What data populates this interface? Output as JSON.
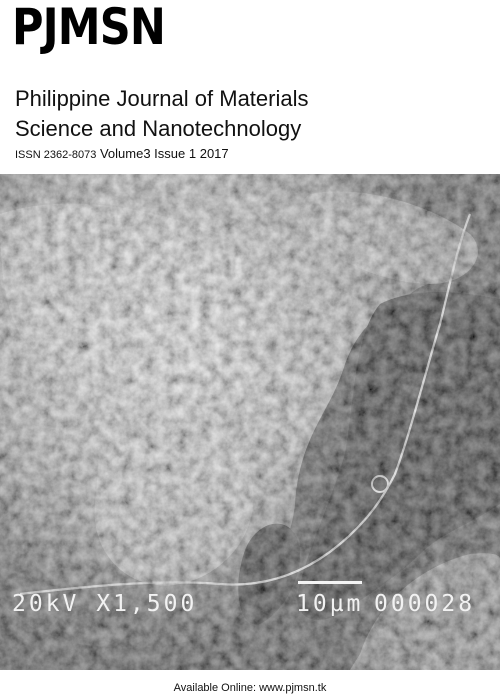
{
  "cover": {
    "logo": "PJMSN",
    "title_line1": "Philippine Journal of Materials",
    "title_line2": "Science and Nanotechnology",
    "issn_label": "ISSN 2362-8073",
    "volume_issue": "Volume3 Issue 1",
    "year": "2017"
  },
  "sem_image": {
    "voltage_mag": "20kV X1,500",
    "scale": "10µm",
    "image_number": "000028"
  },
  "footer": {
    "available_online": "Available Online: www.pjmsn.tk"
  }
}
